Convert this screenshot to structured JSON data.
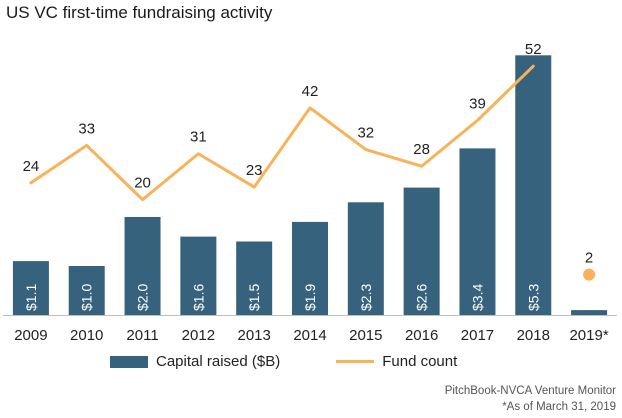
{
  "title": "US VC first-time fundraising activity",
  "chart_data": {
    "type": "bar",
    "categories": [
      "2009",
      "2010",
      "2011",
      "2012",
      "2013",
      "2014",
      "2015",
      "2016",
      "2017",
      "2018",
      "2019*"
    ],
    "series": [
      {
        "name": "Capital raised ($B)",
        "type": "bar",
        "values": [
          1.1,
          1.0,
          2.0,
          1.6,
          1.5,
          1.9,
          2.3,
          2.6,
          3.4,
          5.3,
          0.1
        ],
        "labels": [
          "$1.1",
          "$1.0",
          "$2.0",
          "$1.6",
          "$1.5",
          "$1.9",
          "$2.3",
          "$2.6",
          "$3.4",
          "$5.3",
          ""
        ],
        "color": "#37627e"
      },
      {
        "name": "Fund count",
        "type": "line",
        "values": [
          24,
          33,
          20,
          31,
          23,
          42,
          32,
          28,
          39,
          52,
          2
        ],
        "color": "#f8b25a"
      }
    ]
  },
  "source": {
    "line1": "PitchBook-NVCA Venture Monitor",
    "line2": "*As of March 31, 2019"
  }
}
